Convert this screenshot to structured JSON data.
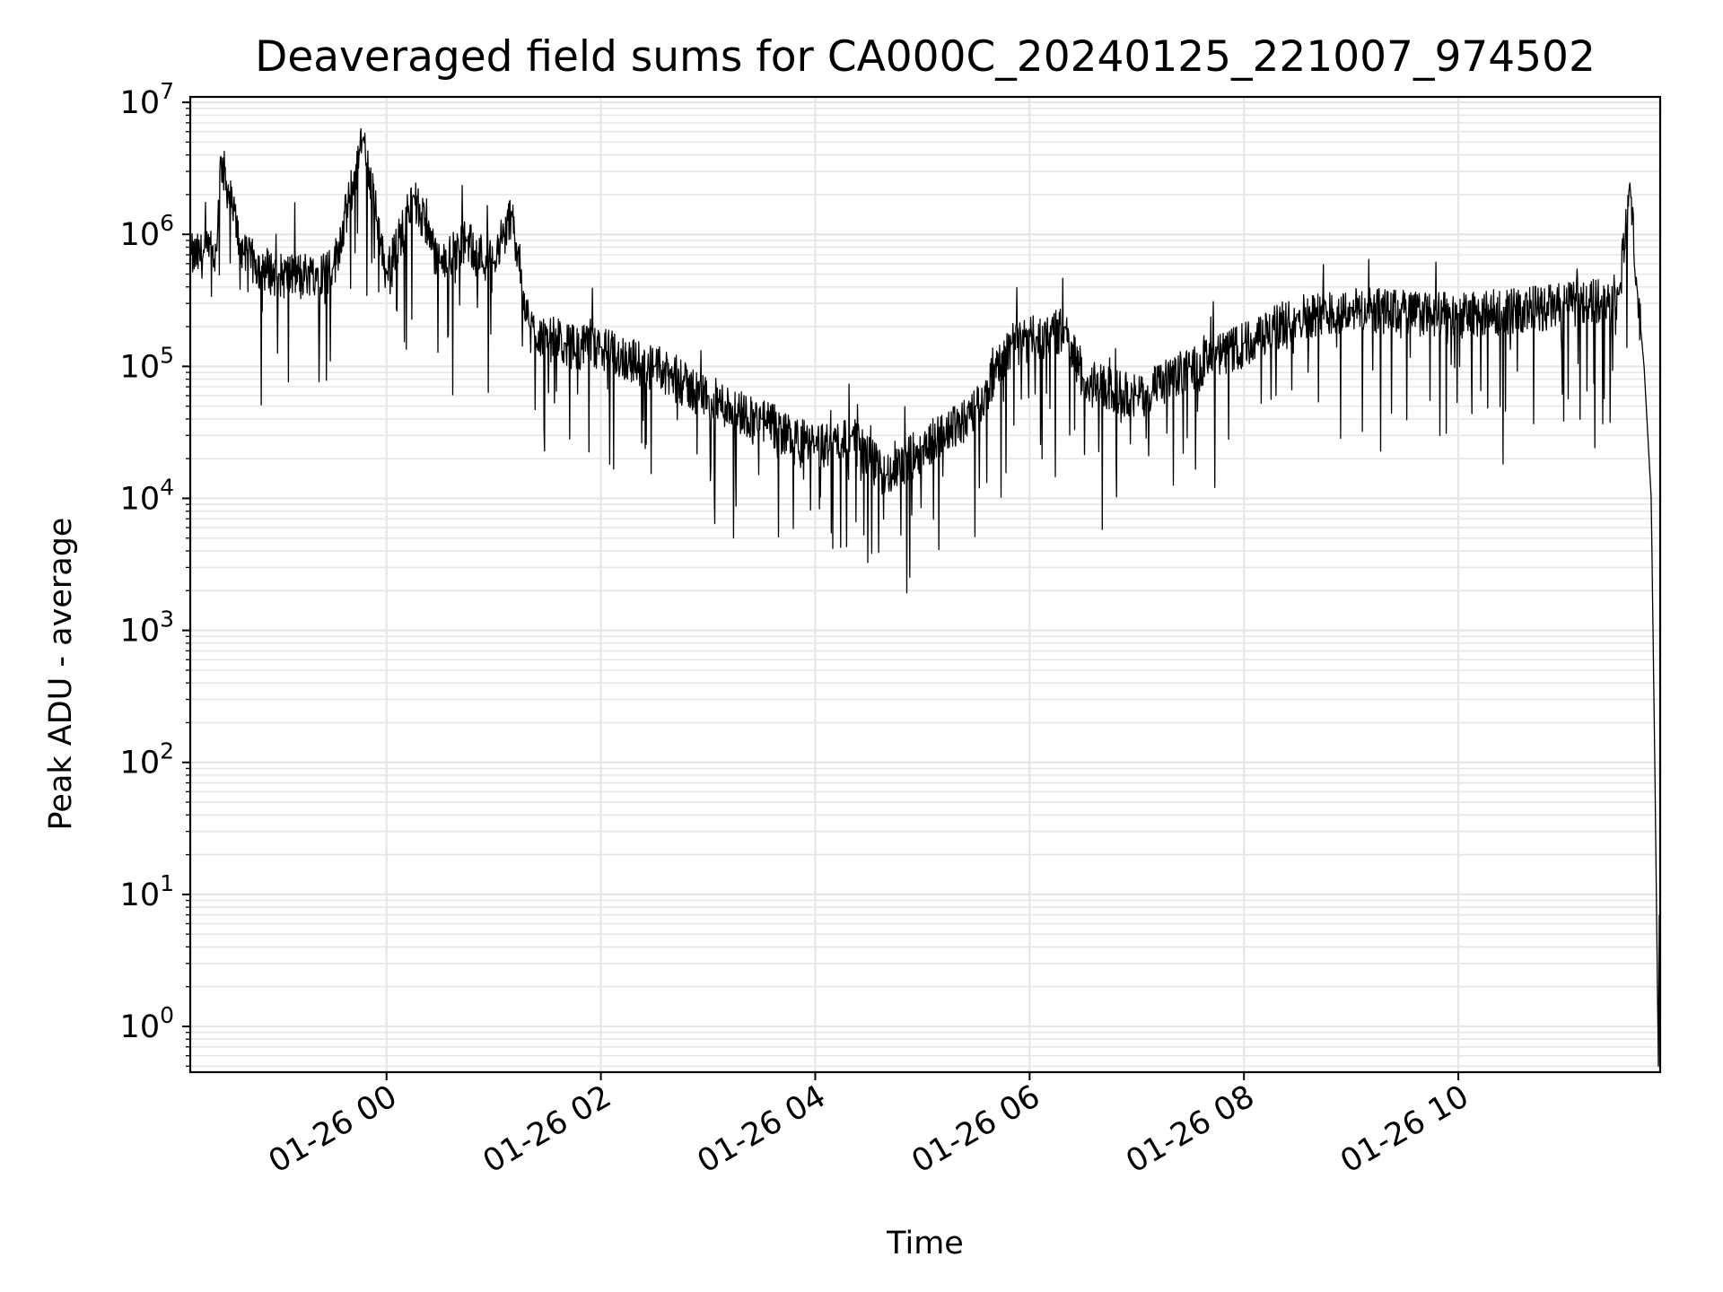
{
  "chart_data": {
    "type": "line",
    "title": "Deaveraged field sums for CA000C_20240125_221007_974502",
    "xlabel": "Time",
    "ylabel": "Peak ADU - average",
    "yscale": "log",
    "ylim": [
      0.45,
      11000000
    ],
    "xlim": [
      "2024-01-25T22:10:07",
      "2024-01-26T11:53:00"
    ],
    "grid": "major and minor",
    "x_ticks": [
      "01-26 00",
      "01-26 02",
      "01-26 04",
      "01-26 06",
      "01-26 08",
      "01-26 10"
    ],
    "x_tick_times": [
      "2024-01-26T00:00:00",
      "2024-01-26T02:00:00",
      "2024-01-26T04:00:00",
      "2024-01-26T06:00:00",
      "2024-01-26T08:00:00",
      "2024-01-26T10:00:00"
    ],
    "y_ticks": [
      {
        "base": "10",
        "exp": "0",
        "value": 1
      },
      {
        "base": "10",
        "exp": "1",
        "value": 10
      },
      {
        "base": "10",
        "exp": "2",
        "value": 100
      },
      {
        "base": "10",
        "exp": "3",
        "value": 1000
      },
      {
        "base": "10",
        "exp": "4",
        "value": 10000
      },
      {
        "base": "10",
        "exp": "5",
        "value": 100000
      },
      {
        "base": "10",
        "exp": "6",
        "value": 1000000
      },
      {
        "base": "10",
        "exp": "7",
        "value": 10000000
      }
    ],
    "series": [
      {
        "color": "#000000",
        "note_points": "approximate trend of the dense noisy trace, [time, value]",
        "points": [
          [
            "2024-01-25T22:10:07",
            700000
          ],
          [
            "2024-01-25T22:25:00",
            750000
          ],
          [
            "2024-01-25T22:27:00",
            4000000
          ],
          [
            "2024-01-25T22:40:00",
            700000
          ],
          [
            "2024-01-25T23:00:00",
            500000
          ],
          [
            "2024-01-25T23:30:00",
            550000
          ],
          [
            "2024-01-25T23:47:00",
            5500000
          ],
          [
            "2024-01-26T00:00:00",
            500000
          ],
          [
            "2024-01-26T00:15:00",
            2000000
          ],
          [
            "2024-01-26T00:30:00",
            600000
          ],
          [
            "2024-01-26T00:45:00",
            900000
          ],
          [
            "2024-01-26T01:00:00",
            600000
          ],
          [
            "2024-01-26T01:10:00",
            1500000
          ],
          [
            "2024-01-26T01:20:00",
            200000
          ],
          [
            "2024-01-26T01:40:00",
            150000
          ],
          [
            "2024-01-26T02:00:00",
            140000
          ],
          [
            "2024-01-26T02:30:00",
            100000
          ],
          [
            "2024-01-26T03:00:00",
            60000
          ],
          [
            "2024-01-26T03:30:00",
            40000
          ],
          [
            "2024-01-26T04:00:00",
            25000
          ],
          [
            "2024-01-26T04:20:00",
            30000
          ],
          [
            "2024-01-26T04:40:00",
            15000
          ],
          [
            "2024-01-26T05:00:00",
            25000
          ],
          [
            "2024-01-26T05:30:00",
            50000
          ],
          [
            "2024-01-26T05:50:00",
            150000
          ],
          [
            "2024-01-26T06:20:00",
            200000
          ],
          [
            "2024-01-26T06:30:00",
            80000
          ],
          [
            "2024-01-26T07:00:00",
            60000
          ],
          [
            "2024-01-26T07:30:00",
            100000
          ],
          [
            "2024-01-26T08:00:00",
            150000
          ],
          [
            "2024-01-26T08:30:00",
            250000
          ],
          [
            "2024-01-26T09:00:00",
            280000
          ],
          [
            "2024-01-26T10:00:00",
            250000
          ],
          [
            "2024-01-26T11:00:00",
            300000
          ],
          [
            "2024-01-26T11:30:00",
            350000
          ],
          [
            "2024-01-26T11:36:00",
            2500000
          ],
          [
            "2024-01-26T11:40:00",
            400000
          ],
          [
            "2024-01-26T11:44:00",
            100000
          ],
          [
            "2024-01-26T11:48:00",
            10000
          ],
          [
            "2024-01-26T11:50:00",
            100
          ],
          [
            "2024-01-26T11:52:00",
            0.5
          ],
          [
            "2024-01-26T11:52:30",
            7
          ]
        ]
      }
    ]
  }
}
